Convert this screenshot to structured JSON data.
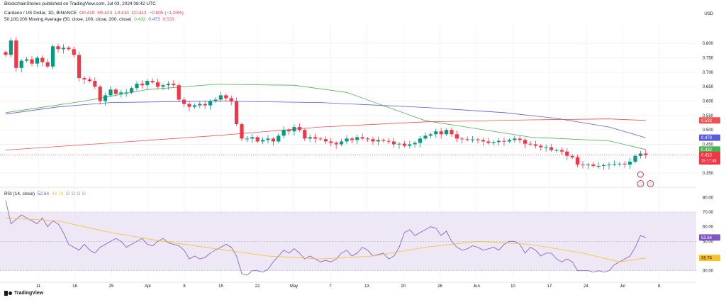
{
  "header": {
    "published_by": "BlockchainStories published on TradingView.com, Jul 03, 2024 08:42 UTC",
    "symbol": "Cardano / US Dollar, 1D, BINANCE",
    "ohlc": {
      "O": "O0.410",
      "H": "H0.423",
      "L": "L0.410",
      "C": "C0.413",
      "change": "−0.005 (−1.20%)"
    },
    "ma_title": "50,100,200 Moving Average (50, close, 100, close, 200, close)",
    "ma_values": [
      "0.432",
      "0.473",
      "0.533"
    ],
    "rsi_title": "RSI (14, close)",
    "rsi_values": [
      "52.64",
      "38.74"
    ],
    "rsi_placeholders": "∅ ∅ ∅ ∅",
    "currency": "USD",
    "brand": "TradingView"
  },
  "colors": {
    "up": "#089981",
    "down": "#f23645",
    "ma50": "#4caf50",
    "ma100": "#5b5bd6",
    "ma200": "#ef5350",
    "rsi": "#7e57c2",
    "rsi_ma": "#fbc02d",
    "rsi_band": "#ede7f6",
    "grid": "#f0f3fa",
    "axis_text": "#131722"
  },
  "chart_data": [
    {
      "type": "candlestick",
      "title": "Cardano / US Dollar, 1D, BINANCE",
      "y_ticks": [
        0.8,
        0.75,
        0.7,
        0.65,
        0.6,
        0.55,
        0.5,
        0.45,
        0.35
      ],
      "y_tick_labels": [
        "0.800",
        "0.750",
        "0.700",
        "0.650",
        "0.600",
        "0.550",
        "0.500",
        "0.450",
        "0.350"
      ],
      "ylim": [
        0.316,
        0.862
      ],
      "x_ticks": [
        "11",
        "18",
        "25",
        "Apr",
        "8",
        "15",
        "22",
        "May",
        "7",
        "13",
        "20",
        "26",
        "Jun",
        "10",
        "17",
        "24",
        "Jul",
        "8"
      ],
      "closes": [
        0.76,
        0.81,
        0.715,
        0.74,
        0.745,
        0.73,
        0.75,
        0.735,
        0.72,
        0.79,
        0.78,
        0.785,
        0.78,
        0.76,
        0.68,
        0.675,
        0.67,
        0.65,
        0.6,
        0.62,
        0.64,
        0.625,
        0.63,
        0.63,
        0.645,
        0.66,
        0.655,
        0.67,
        0.665,
        0.65,
        0.655,
        0.66,
        0.655,
        0.605,
        0.59,
        0.58,
        0.585,
        0.59,
        0.585,
        0.6,
        0.605,
        0.62,
        0.61,
        0.6,
        0.52,
        0.47,
        0.47,
        0.475,
        0.46,
        0.465,
        0.47,
        0.46,
        0.48,
        0.5,
        0.495,
        0.51,
        0.5,
        0.47,
        0.475,
        0.47,
        0.468,
        0.46,
        0.455,
        0.45,
        0.46,
        0.47,
        0.465,
        0.475,
        0.47,
        0.468,
        0.46,
        0.465,
        0.462,
        0.46,
        0.45,
        0.452,
        0.445,
        0.45,
        0.455,
        0.47,
        0.48,
        0.485,
        0.495,
        0.485,
        0.5,
        0.485,
        0.47,
        0.468,
        0.466,
        0.467,
        0.465,
        0.46,
        0.455,
        0.458,
        0.462,
        0.46,
        0.465,
        0.47,
        0.465,
        0.452,
        0.45,
        0.445,
        0.44,
        0.44,
        0.43,
        0.43,
        0.425,
        0.41,
        0.405,
        0.38,
        0.378,
        0.38,
        0.375,
        0.375,
        0.378,
        0.38,
        0.382,
        0.383,
        0.38,
        0.39,
        0.41,
        0.418,
        0.413
      ],
      "last_price_label": "0.413",
      "countdown": "15:17:48",
      "series": [
        {
          "name": "MA 50",
          "color": "#4caf50",
          "last": 0.432,
          "points": [
            [
              0,
              0.56
            ],
            [
              15,
              0.6
            ],
            [
              27,
              0.64
            ],
            [
              40,
              0.658
            ],
            [
              55,
              0.655
            ],
            [
              65,
              0.63
            ],
            [
              80,
              0.532
            ],
            [
              92,
              0.498
            ],
            [
              100,
              0.475
            ],
            [
              115,
              0.462
            ],
            [
              122,
              0.432
            ]
          ]
        },
        {
          "name": "MA 100",
          "color": "#5b5bd6",
          "last": 0.473,
          "points": [
            [
              0,
              0.555
            ],
            [
              10,
              0.58
            ],
            [
              20,
              0.595
            ],
            [
              40,
              0.6
            ],
            [
              60,
              0.595
            ],
            [
              80,
              0.578
            ],
            [
              95,
              0.56
            ],
            [
              105,
              0.54
            ],
            [
              115,
              0.51
            ],
            [
              122,
              0.473
            ]
          ]
        },
        {
          "name": "MA 200",
          "color": "#ef5350",
          "last": 0.533,
          "points": [
            [
              0,
              0.43
            ],
            [
              20,
              0.455
            ],
            [
              40,
              0.48
            ],
            [
              60,
              0.51
            ],
            [
              80,
              0.528
            ],
            [
              100,
              0.535
            ],
            [
              115,
              0.538
            ],
            [
              122,
              0.533
            ]
          ]
        }
      ]
    },
    {
      "type": "line",
      "title": "RSI (14, close)",
      "y_ticks": [
        80.0,
        70.0,
        60.0,
        50.0,
        30.0
      ],
      "y_tick_labels": [
        "80.00",
        "70.00",
        "60.00",
        "50.00",
        "30.00"
      ],
      "ylim": [
        25,
        85
      ],
      "band": [
        30,
        70
      ],
      "series": [
        {
          "name": "RSI",
          "color": "#7e57c2",
          "last": 52.64,
          "values": [
            78,
            62,
            65,
            68,
            66,
            64,
            62,
            66,
            60,
            64,
            62,
            56,
            48,
            46,
            44,
            48,
            44,
            42,
            46,
            48,
            50,
            52,
            50,
            46,
            48,
            50,
            52,
            48,
            47,
            50,
            52,
            49,
            48,
            47,
            44,
            38,
            40,
            38,
            39,
            42,
            44,
            46,
            48,
            46,
            40,
            28,
            27,
            30,
            30,
            29,
            31,
            36,
            40,
            44,
            42,
            45,
            42,
            38,
            40,
            38,
            36,
            37,
            36,
            38,
            42,
            44,
            40,
            42,
            46,
            44,
            40,
            41,
            42,
            38,
            40,
            46,
            56,
            58,
            54,
            56,
            58,
            60,
            59,
            54,
            57,
            50,
            46,
            44,
            45,
            47,
            46,
            44,
            45,
            46,
            44,
            48,
            50,
            50,
            48,
            42,
            46,
            44,
            40,
            42,
            42,
            38,
            36,
            38,
            36,
            30,
            30,
            30,
            29,
            30,
            29,
            30,
            34,
            36,
            38,
            40,
            46,
            54,
            52.6
          ]
        },
        {
          "name": "RSI-based MA",
          "color": "#fbc02d",
          "last": 38.74,
          "points": [
            [
              0,
              66
            ],
            [
              10,
              64
            ],
            [
              20,
              56
            ],
            [
              30,
              50
            ],
            [
              40,
              45
            ],
            [
              50,
              40
            ],
            [
              60,
              38
            ],
            [
              70,
              40
            ],
            [
              80,
              46
            ],
            [
              90,
              50
            ],
            [
              100,
              48
            ],
            [
              110,
              42
            ],
            [
              117,
              36
            ],
            [
              122,
              38.7
            ]
          ]
        }
      ]
    }
  ]
}
